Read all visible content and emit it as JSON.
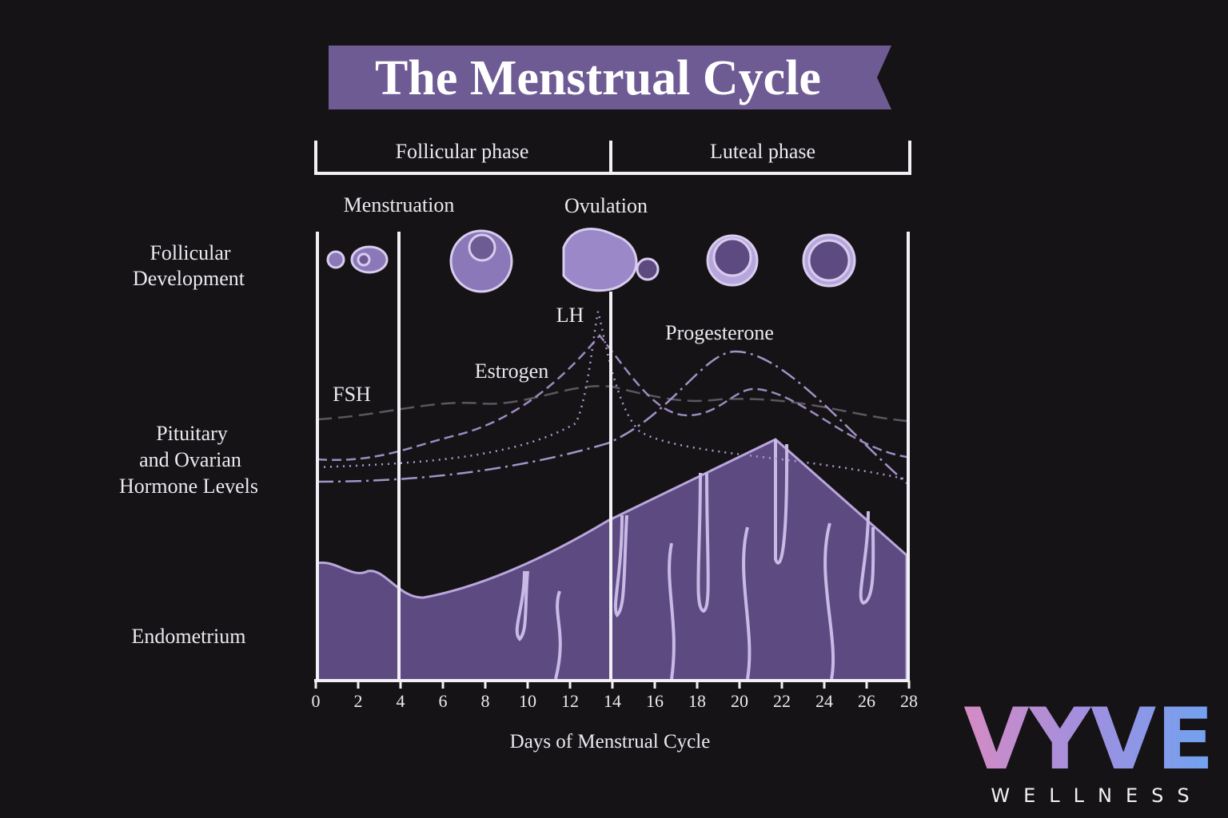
{
  "title": "The Menstrual Cycle",
  "phases": [
    "Follicular phase",
    "Luteal phase"
  ],
  "events": {
    "menstruation": "Menstruation",
    "ovulation": "Ovulation"
  },
  "row_labels": {
    "follicular": [
      "Follicular",
      "Development"
    ],
    "hormones": [
      "Pituitary",
      "and Ovarian",
      "Hormone Levels"
    ],
    "endometrium": "Endometrium"
  },
  "hormones": {
    "lh": "LH",
    "estrogen": "Estrogen",
    "fsh": "FSH",
    "progesterone": "Progesterone"
  },
  "x_axis": {
    "ticks": [
      "0",
      "2",
      "4",
      "6",
      "8",
      "10",
      "12",
      "14",
      "16",
      "18",
      "20",
      "22",
      "24",
      "26",
      "28"
    ],
    "label": "Days of Menstrual Cycle"
  },
  "logo": {
    "name": "VYVE",
    "tagline": "WELLNESS"
  }
}
